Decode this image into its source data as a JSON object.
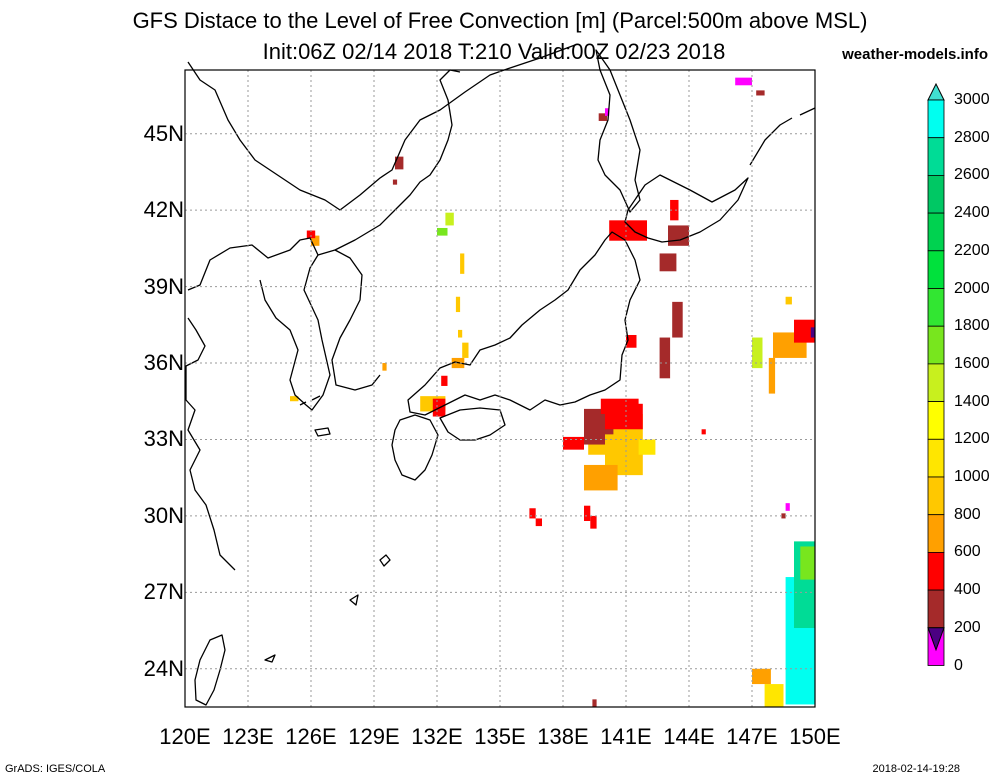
{
  "header": {
    "title_line1": "GFS Distace to the Level of Free Convection [m] (Parcel:500m above MSL)",
    "title_line2": "Init:06Z 02/14 2018 T:210 Valid:00Z 02/23 2018",
    "site": "weather-models.info"
  },
  "map": {
    "lon_range": [
      120,
      150
    ],
    "lat_range": [
      22.5,
      47.5
    ],
    "grid_dotted": true,
    "x_ticks": [
      {
        "value": 120,
        "label": "120E"
      },
      {
        "value": 123,
        "label": "123E"
      },
      {
        "value": 126,
        "label": "126E"
      },
      {
        "value": 129,
        "label": "129E"
      },
      {
        "value": 132,
        "label": "132E"
      },
      {
        "value": 135,
        "label": "135E"
      },
      {
        "value": 138,
        "label": "138E"
      },
      {
        "value": 141,
        "label": "141E"
      },
      {
        "value": 144,
        "label": "144E"
      },
      {
        "value": 147,
        "label": "147E"
      },
      {
        "value": 150,
        "label": "150E"
      }
    ],
    "y_ticks": [
      {
        "value": 45,
        "label": "45N"
      },
      {
        "value": 42,
        "label": "42N"
      },
      {
        "value": 39,
        "label": "39N"
      },
      {
        "value": 36,
        "label": "36N"
      },
      {
        "value": 33,
        "label": "33N"
      },
      {
        "value": 30,
        "label": "30N"
      },
      {
        "value": 27,
        "label": "27N"
      },
      {
        "value": 24,
        "label": "24N"
      }
    ]
  },
  "colorbar": {
    "labels": [
      "3000",
      "2800",
      "2600",
      "2400",
      "2200",
      "2000",
      "1800",
      "1600",
      "1400",
      "1200",
      "1000",
      "800",
      "600",
      "400",
      "200",
      "0"
    ],
    "colors": [
      "#00fff0",
      "#00dc96",
      "#00c864",
      "#00d250",
      "#00e13c",
      "#32e632",
      "#78e61e",
      "#c8f01e",
      "#ffff00",
      "#ffe600",
      "#ffc800",
      "#ffa000",
      "#ff0000",
      "#a52a2a",
      "#ff00ff",
      "#4b0082"
    ],
    "top_arrow_color": "#40e0d0",
    "bottom_arrow_color": "#4b0082"
  },
  "footer": {
    "left": "GrADS: IGES/COLA",
    "right": "2018-02-14-19:28"
  },
  "field_patches": [
    {
      "lon": 139.2,
      "lat": 32.4,
      "w": 2.6,
      "h": 1.6,
      "color": "#ffc800"
    },
    {
      "lon": 140.0,
      "lat": 31.6,
      "w": 1.8,
      "h": 1.4,
      "color": "#ffc800"
    },
    {
      "lon": 139.0,
      "lat": 31.0,
      "w": 1.6,
      "h": 1.0,
      "color": "#ffa000"
    },
    {
      "lon": 139.0,
      "lat": 32.8,
      "w": 1.0,
      "h": 1.4,
      "color": "#a52a2a"
    },
    {
      "lon": 139.2,
      "lat": 33.2,
      "w": 1.2,
      "h": 0.8,
      "color": "#a52a2a"
    },
    {
      "lon": 140.0,
      "lat": 33.4,
      "w": 1.8,
      "h": 1.0,
      "color": "#ff0000"
    },
    {
      "lon": 138.0,
      "lat": 32.6,
      "w": 1.0,
      "h": 0.5,
      "color": "#ff0000"
    },
    {
      "lon": 139.8,
      "lat": 34.0,
      "w": 1.8,
      "h": 0.6,
      "color": "#ff0000"
    },
    {
      "lon": 141.6,
      "lat": 32.4,
      "w": 0.8,
      "h": 0.6,
      "color": "#ffe600"
    },
    {
      "lon": 140.2,
      "lat": 40.8,
      "w": 1.8,
      "h": 0.8,
      "color": "#ff0000"
    },
    {
      "lon": 143.0,
      "lat": 40.6,
      "w": 1.0,
      "h": 0.8,
      "color": "#a52a2a"
    },
    {
      "lon": 142.6,
      "lat": 39.6,
      "w": 0.8,
      "h": 0.7,
      "color": "#a52a2a"
    },
    {
      "lon": 143.1,
      "lat": 41.6,
      "w": 0.4,
      "h": 0.8,
      "color": "#ff0000"
    },
    {
      "lon": 143.2,
      "lat": 37.0,
      "w": 0.5,
      "h": 1.4,
      "color": "#a52a2a"
    },
    {
      "lon": 142.6,
      "lat": 35.4,
      "w": 0.5,
      "h": 1.6,
      "color": "#a52a2a"
    },
    {
      "lon": 141.0,
      "lat": 36.6,
      "w": 0.5,
      "h": 0.5,
      "color": "#ff0000"
    },
    {
      "lon": 148.0,
      "lat": 36.2,
      "w": 1.6,
      "h": 1.0,
      "color": "#ffa000"
    },
    {
      "lon": 149.0,
      "lat": 36.8,
      "w": 1.0,
      "h": 0.9,
      "color": "#ff0000"
    },
    {
      "lon": 147.0,
      "lat": 35.8,
      "w": 0.5,
      "h": 1.2,
      "color": "#c8f01e"
    },
    {
      "lon": 147.8,
      "lat": 34.8,
      "w": 0.3,
      "h": 1.4,
      "color": "#ffa000"
    },
    {
      "lon": 148.6,
      "lat": 38.3,
      "w": 0.3,
      "h": 0.3,
      "color": "#ffc800"
    },
    {
      "lon": 148.6,
      "lat": 22.6,
      "w": 1.4,
      "h": 5.0,
      "color": "#00fff0"
    },
    {
      "lon": 149.0,
      "lat": 25.6,
      "w": 1.0,
      "h": 3.4,
      "color": "#00dc96"
    },
    {
      "lon": 149.3,
      "lat": 27.5,
      "w": 0.7,
      "h": 1.3,
      "color": "#78e61e"
    },
    {
      "lon": 147.6,
      "lat": 22.5,
      "w": 0.9,
      "h": 0.9,
      "color": "#ffe600"
    },
    {
      "lon": 147.0,
      "lat": 23.4,
      "w": 0.9,
      "h": 0.6,
      "color": "#ffa000"
    },
    {
      "lon": 131.2,
      "lat": 34.1,
      "w": 1.2,
      "h": 0.6,
      "color": "#ffc800"
    },
    {
      "lon": 131.8,
      "lat": 33.9,
      "w": 0.6,
      "h": 0.7,
      "color": "#ff0000"
    },
    {
      "lon": 132.2,
      "lat": 35.1,
      "w": 0.3,
      "h": 0.4,
      "color": "#ff0000"
    },
    {
      "lon": 132.7,
      "lat": 35.8,
      "w": 0.6,
      "h": 0.4,
      "color": "#ffa000"
    },
    {
      "lon": 133.2,
      "lat": 36.2,
      "w": 0.3,
      "h": 0.6,
      "color": "#ffc800"
    },
    {
      "lon": 133.1,
      "lat": 39.5,
      "w": 0.2,
      "h": 0.8,
      "color": "#ffc800"
    },
    {
      "lon": 132.9,
      "lat": 38.0,
      "w": 0.2,
      "h": 0.6,
      "color": "#ffc800"
    },
    {
      "lon": 133.0,
      "lat": 37.0,
      "w": 0.2,
      "h": 0.3,
      "color": "#ffc800"
    },
    {
      "lon": 132.4,
      "lat": 41.4,
      "w": 0.4,
      "h": 0.5,
      "color": "#c8f01e"
    },
    {
      "lon": 132.0,
      "lat": 41.0,
      "w": 0.5,
      "h": 0.3,
      "color": "#78e61e"
    },
    {
      "lon": 126.0,
      "lat": 40.6,
      "w": 0.4,
      "h": 0.4,
      "color": "#ffa000"
    },
    {
      "lon": 125.8,
      "lat": 40.9,
      "w": 0.4,
      "h": 0.3,
      "color": "#ff0000"
    },
    {
      "lon": 125.0,
      "lat": 34.5,
      "w": 0.4,
      "h": 0.2,
      "color": "#ffc800"
    },
    {
      "lon": 129.4,
      "lat": 35.7,
      "w": 0.2,
      "h": 0.3,
      "color": "#ffa000"
    },
    {
      "lon": 139.0,
      "lat": 29.8,
      "w": 0.3,
      "h": 0.6,
      "color": "#ff0000"
    },
    {
      "lon": 139.3,
      "lat": 29.5,
      "w": 0.3,
      "h": 0.5,
      "color": "#ff0000"
    },
    {
      "lon": 136.4,
      "lat": 29.9,
      "w": 0.3,
      "h": 0.4,
      "color": "#ff0000"
    },
    {
      "lon": 136.7,
      "lat": 29.6,
      "w": 0.3,
      "h": 0.3,
      "color": "#ff0000"
    },
    {
      "lon": 130.0,
      "lat": 43.6,
      "w": 0.4,
      "h": 0.5,
      "color": "#a52a2a"
    },
    {
      "lon": 129.9,
      "lat": 43.0,
      "w": 0.2,
      "h": 0.2,
      "color": "#a52a2a"
    },
    {
      "lon": 139.7,
      "lat": 45.5,
      "w": 0.4,
      "h": 0.3,
      "color": "#a52a2a"
    },
    {
      "lon": 140.0,
      "lat": 45.7,
      "w": 0.2,
      "h": 0.3,
      "color": "#ff00ff"
    },
    {
      "lon": 146.2,
      "lat": 46.9,
      "w": 0.8,
      "h": 0.3,
      "color": "#ff00ff"
    },
    {
      "lon": 147.2,
      "lat": 46.5,
      "w": 0.4,
      "h": 0.2,
      "color": "#a52a2a"
    },
    {
      "lon": 148.6,
      "lat": 30.2,
      "w": 0.2,
      "h": 0.3,
      "color": "#ff00ff"
    },
    {
      "lon": 148.4,
      "lat": 29.9,
      "w": 0.2,
      "h": 0.2,
      "color": "#a52a2a"
    },
    {
      "lon": 149.8,
      "lat": 37.0,
      "w": 0.2,
      "h": 0.4,
      "color": "#4b0082"
    },
    {
      "lon": 144.6,
      "lat": 33.2,
      "w": 0.2,
      "h": 0.2,
      "color": "#ff0000"
    },
    {
      "lon": 139.4,
      "lat": 22.5,
      "w": 0.2,
      "h": 0.3,
      "color": "#a52a2a"
    }
  ]
}
